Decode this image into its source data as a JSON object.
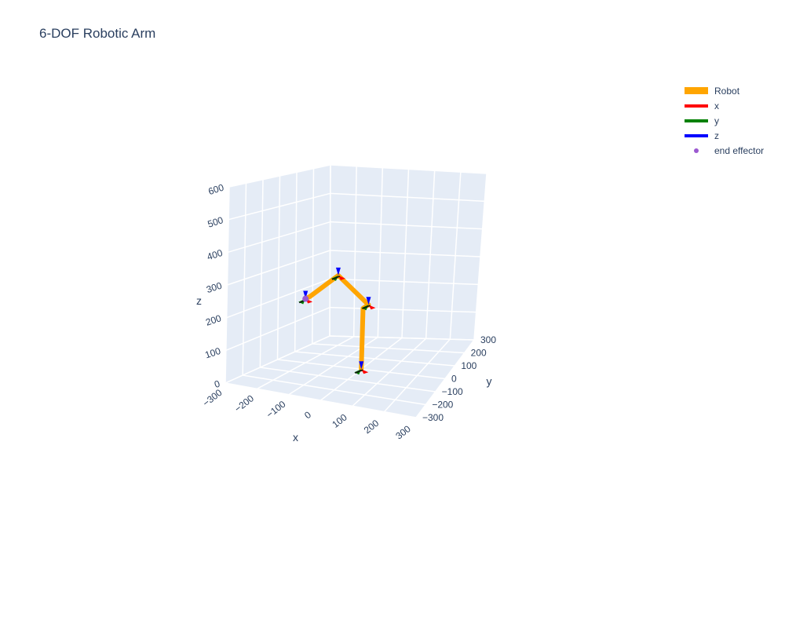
{
  "chart_data": {
    "type": "scatter3d",
    "title": "6-DOF Robotic Arm",
    "axes": {
      "x": {
        "label": "x",
        "range": [
          -300,
          300
        ],
        "ticks": [
          -300,
          -200,
          -100,
          0,
          100,
          200,
          300
        ],
        "tick_labels": [
          "−300",
          "−200",
          "−100",
          "0",
          "100",
          "200",
          "300"
        ]
      },
      "y": {
        "label": "y",
        "range": [
          -300,
          300
        ],
        "ticks": [
          -300,
          -200,
          -100,
          0,
          100,
          200,
          300
        ],
        "tick_labels": [
          "−300",
          "−200",
          "−100",
          "0",
          "100",
          "200",
          "300"
        ]
      },
      "z": {
        "label": "z",
        "range": [
          0,
          600
        ],
        "ticks": [
          0,
          100,
          200,
          300,
          400,
          500,
          600
        ],
        "tick_labels": [
          "0",
          "100",
          "200",
          "300",
          "400",
          "500",
          "600"
        ]
      }
    },
    "grid": true,
    "legend_position": "top-right",
    "series": [
      {
        "name": "Robot",
        "color": "#FFA500",
        "type": "line",
        "points": [
          [
            0,
            0,
            0
          ],
          [
            0,
            0,
            90
          ],
          [
            0,
            0,
            200
          ],
          [
            0,
            40,
            200
          ],
          [
            -70,
            -40,
            310
          ],
          [
            -100,
            -170,
            270
          ],
          [
            -100,
            -200,
            270
          ]
        ]
      },
      {
        "name": "x",
        "color": "#FF0000",
        "type": "line"
      },
      {
        "name": "y",
        "color": "#008000",
        "type": "line"
      },
      {
        "name": "z",
        "color": "#0000FF",
        "type": "line"
      },
      {
        "name": "end effector",
        "color": "#9B59D0",
        "type": "marker",
        "points": [
          [
            -100,
            -200,
            270
          ]
        ]
      }
    ],
    "frame_markers": [
      {
        "at": [
          0,
          0,
          0
        ]
      },
      {
        "at": [
          0,
          40,
          200
        ]
      },
      {
        "at": [
          -70,
          -40,
          310
        ]
      },
      {
        "at": [
          -100,
          -200,
          270
        ]
      }
    ]
  }
}
